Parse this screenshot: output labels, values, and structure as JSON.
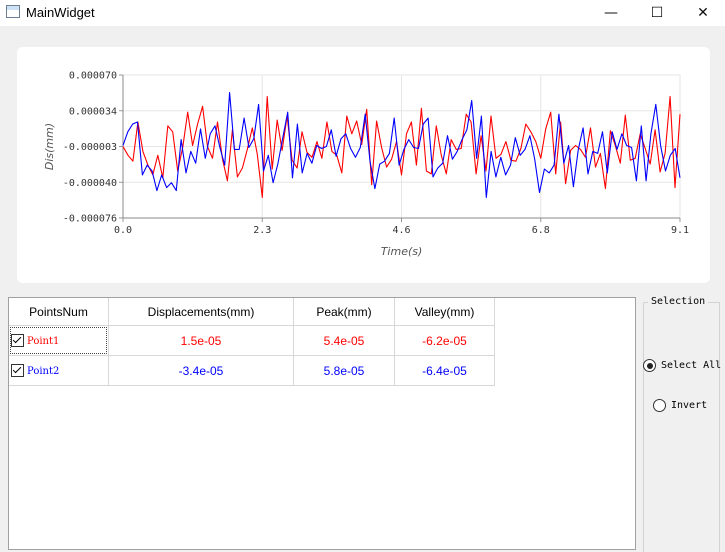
{
  "window": {
    "title": "MainWidget"
  },
  "window_controls": {
    "minimize": "—",
    "maximize": "☐",
    "close": "✕"
  },
  "chart_data": {
    "type": "line",
    "title": "",
    "xlabel": "Time(s)",
    "ylabel": "Dis(mm)",
    "xlim": [
      0,
      9.1
    ],
    "ylim": [
      -7.6e-05,
      7e-05
    ],
    "x_ticks": [
      "0.0",
      "2.3",
      "4.6",
      "6.8",
      "9.1"
    ],
    "y_ticks": [
      "0.000070",
      "0.000034",
      "-0.000003",
      "-0.000040",
      "-0.000076"
    ],
    "grid": true,
    "series": [
      {
        "color": "#ff0000",
        "y": [
          -3,
          -12,
          -18,
          22,
          -8,
          -22,
          -32,
          -12,
          -35,
          18,
          12,
          -28,
          -4,
          32,
          -2,
          20,
          38,
          -3,
          -15,
          22,
          -16,
          -38,
          14,
          -34,
          -25,
          -6,
          16,
          -11,
          -55,
          48,
          -26,
          24,
          -7,
          28,
          -17,
          -25,
          12,
          -9,
          -14,
          2,
          -15,
          22,
          -8,
          -12,
          -30,
          28,
          10,
          23,
          -1,
          35,
          -42,
          23,
          -4,
          -24,
          -16,
          2,
          -32,
          10,
          22,
          -22,
          36,
          -28,
          -31,
          18,
          -12,
          -31,
          4,
          -6,
          -5,
          30,
          22,
          -31,
          8,
          -28,
          28,
          -15,
          -11,
          2,
          -17,
          -18,
          -5,
          20,
          12,
          2,
          -15,
          15,
          32,
          -31,
          22,
          -41,
          -7,
          -2,
          -6,
          -14,
          16,
          -24,
          -10,
          -46,
          13,
          -2,
          -20,
          29,
          -17,
          -15,
          10,
          -5,
          -21,
          14,
          -29,
          -10,
          48,
          -45,
          30
        ]
      },
      {
        "color": "#0000ff",
        "y": [
          -2,
          12,
          20,
          22,
          -32,
          -22,
          -28,
          -48,
          -32,
          -45,
          -40,
          -48,
          4,
          -30,
          -8,
          -20,
          15,
          -15,
          10,
          18,
          -4,
          -22,
          52,
          -6,
          -6,
          26,
          -4,
          5,
          40,
          -28,
          -12,
          -40,
          -20,
          6,
          32,
          -35,
          20,
          -30,
          -10,
          -20,
          -2,
          -5,
          -3,
          14,
          -13,
          5,
          10,
          -5,
          -14,
          -4,
          30,
          -18,
          -46,
          -21,
          -18,
          -10,
          26,
          -22,
          -6,
          4,
          -4,
          -5,
          20,
          26,
          -34,
          -25,
          -20,
          8,
          -16,
          -8,
          4,
          14,
          44,
          -15,
          28,
          -55,
          -8,
          -34,
          -14,
          -32,
          -22,
          6,
          -12,
          -6,
          8,
          -16,
          -50,
          -26,
          -30,
          -22,
          30,
          -20,
          -2,
          -44,
          -6,
          16,
          -31,
          -8,
          -10,
          12,
          -30,
          12,
          -6,
          10,
          -2,
          -4,
          -38,
          18,
          -38,
          10,
          40,
          -2,
          -28,
          -12,
          -5,
          -35
        ]
      }
    ]
  },
  "table": {
    "headers": [
      "PointsNum",
      "Displacements(mm)",
      "Peak(mm)",
      "Valley(mm)"
    ],
    "rows": [
      {
        "name": "Point1",
        "checked": true,
        "displacement": "1.5e-05",
        "peak": "5.4e-05",
        "valley": "-6.2e-05",
        "color": "#ff0000"
      },
      {
        "name": "Point2",
        "checked": true,
        "displacement": "-3.4e-05",
        "peak": "5.8e-05",
        "valley": "-6.4e-05",
        "color": "#0000ff"
      }
    ]
  },
  "selection": {
    "title": "Selection",
    "options": [
      {
        "label": "Select All",
        "selected": true
      },
      {
        "label": "Invert",
        "selected": false
      }
    ]
  }
}
